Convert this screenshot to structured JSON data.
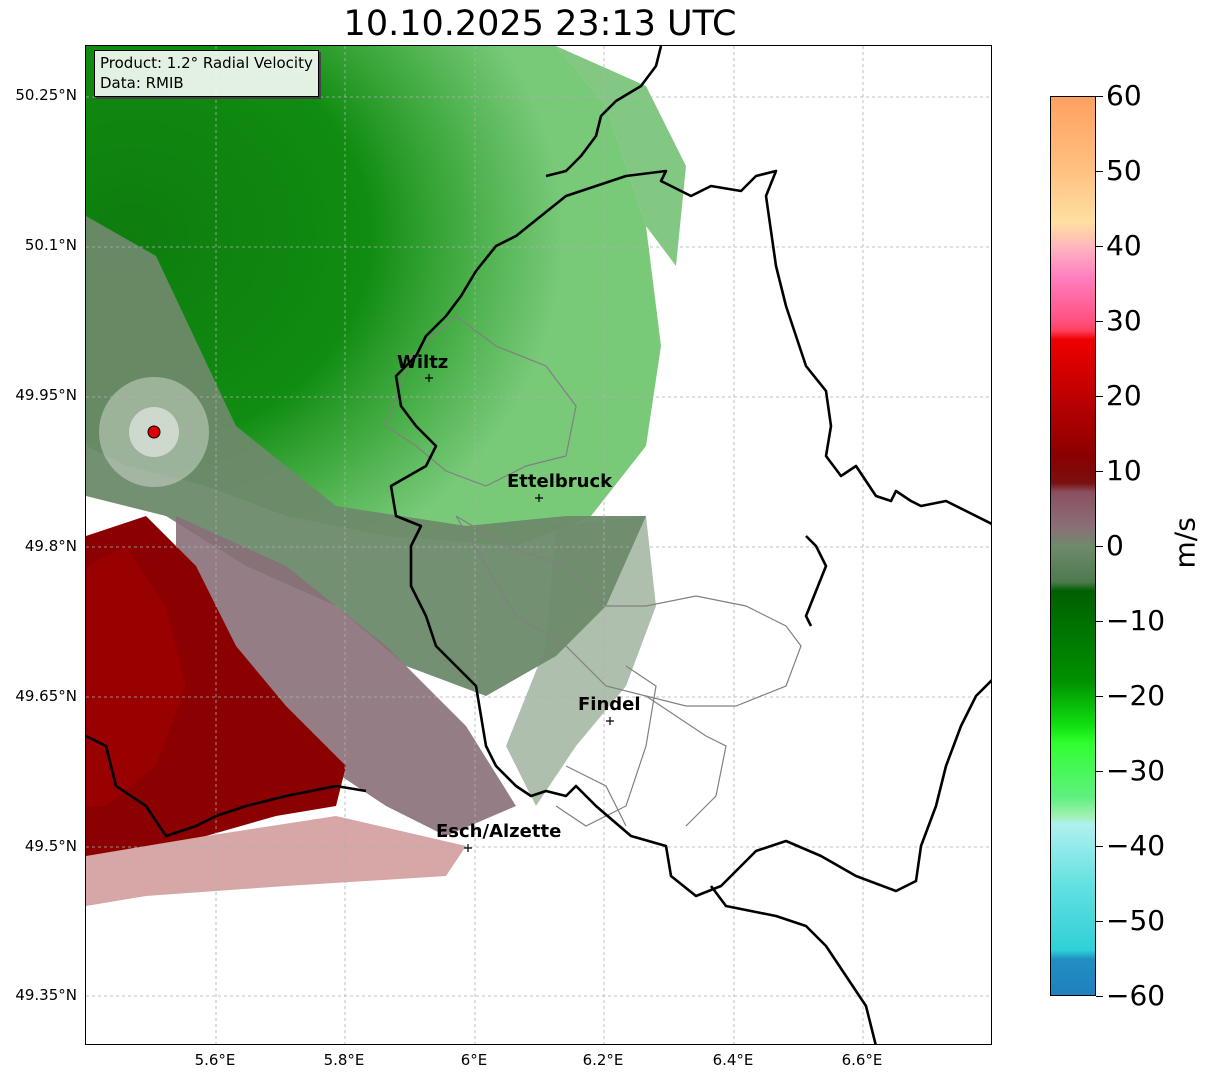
{
  "title": "10.10.2025 23:13 UTC",
  "product_box": {
    "product": "Product: 1.2° Radial Velocity",
    "data_source": "Data: RMIB"
  },
  "axes": {
    "lat_ticks": [
      "50.25°N",
      "50.1°N",
      "49.95°N",
      "49.8°N",
      "49.65°N",
      "49.5°N",
      "49.35°N"
    ],
    "lon_ticks": [
      "5.6°E",
      "5.8°E",
      "6°E",
      "6.2°E",
      "6.4°E",
      "6.6°E"
    ]
  },
  "cities": [
    "Wiltz",
    "Ettelbruck",
    "Findel",
    "Esch/Alzette"
  ],
  "colorbar": {
    "unit": "m/s",
    "ticks": [
      "60",
      "50",
      "40",
      "30",
      "20",
      "10",
      "0",
      "−10",
      "−20",
      "−30",
      "−40",
      "−50",
      "−60"
    ],
    "range": [
      -60,
      60
    ]
  },
  "colors": {
    "approaching_green": "#0a8a0a",
    "zero_gray_green": "#6e8a6a",
    "receding_red": "#8b0000",
    "radar_site": "#e00000"
  }
}
